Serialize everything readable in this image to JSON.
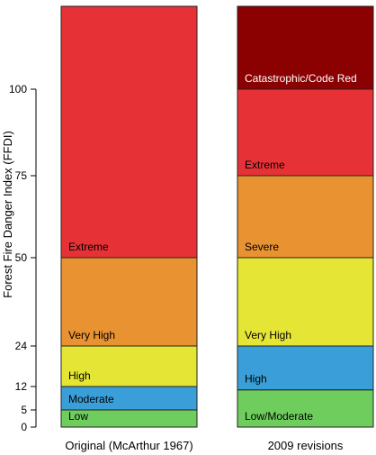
{
  "chart_data": {
    "type": "bar",
    "ylabel": "Forest Fire Danger Index (FFDI)",
    "y_ticks": [
      0,
      5,
      12,
      24,
      50,
      75,
      100
    ],
    "categories": [
      "Original (McArthur 1967)",
      "2009 revisions"
    ],
    "columns": [
      {
        "name": "Original (McArthur 1967)",
        "bands": [
          {
            "label": "Low",
            "from": 0,
            "to": 5,
            "color": "#6fcd5e"
          },
          {
            "label": "Moderate",
            "from": 5,
            "to": 12,
            "color": "#3a9fd9"
          },
          {
            "label": "High",
            "from": 12,
            "to": 24,
            "color": "#e5e536"
          },
          {
            "label": "Very High",
            "from": 24,
            "to": 50,
            "color": "#e99232"
          },
          {
            "label": "Extreme",
            "from": 50,
            "to": 125,
            "color": "#e63236"
          }
        ]
      },
      {
        "name": "2009 revisions",
        "bands": [
          {
            "label": "Low/Moderate",
            "from": 0,
            "to": 11,
            "color": "#6fcd5e"
          },
          {
            "label": "High",
            "from": 11,
            "to": 24,
            "color": "#3a9fd9"
          },
          {
            "label": "Very High",
            "from": 24,
            "to": 50,
            "color": "#e5e536"
          },
          {
            "label": "Severe",
            "from": 50,
            "to": 75,
            "color": "#e99232"
          },
          {
            "label": "Extreme",
            "from": 75,
            "to": 100,
            "color": "#e63236"
          },
          {
            "label": "Catastrophic/Code Red",
            "from": 100,
            "to": 125,
            "color": "#8b0000"
          }
        ]
      }
    ]
  }
}
